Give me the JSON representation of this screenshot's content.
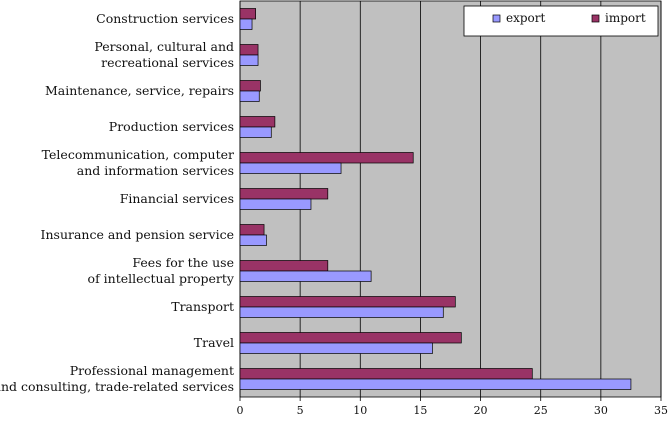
{
  "chart_data": {
    "type": "bar",
    "orientation": "horizontal",
    "categories": [
      [
        "Construction services"
      ],
      [
        "Personal, cultural and",
        "recreational services"
      ],
      [
        "Maintenance, service, repairs"
      ],
      [
        "Production services"
      ],
      [
        "Telecommunication, computer",
        "and information services"
      ],
      [
        "Financial services"
      ],
      [
        "Insurance and pension service"
      ],
      [
        "Fees for the use",
        "of intellectual property"
      ],
      [
        "Transport"
      ],
      [
        "Travel"
      ],
      [
        "Professional management",
        "and consulting, trade-related services"
      ]
    ],
    "series": [
      {
        "name": "import",
        "color": "#993366",
        "values": [
          1.3,
          1.5,
          1.7,
          2.9,
          14.4,
          7.3,
          2.0,
          7.3,
          17.9,
          18.4,
          24.3
        ]
      },
      {
        "name": "export",
        "color": "#9999ff",
        "values": [
          1.0,
          1.5,
          1.6,
          2.6,
          8.4,
          5.9,
          2.2,
          10.9,
          16.9,
          16.0,
          32.5
        ]
      }
    ],
    "xlim": [
      0,
      35
    ],
    "xticks": [
      0,
      5,
      10,
      15,
      20,
      25,
      30,
      35
    ],
    "grid": true,
    "plot_background": "#c0c0c0",
    "legend": {
      "placement": "top-right",
      "order": [
        "export",
        "import"
      ]
    }
  }
}
